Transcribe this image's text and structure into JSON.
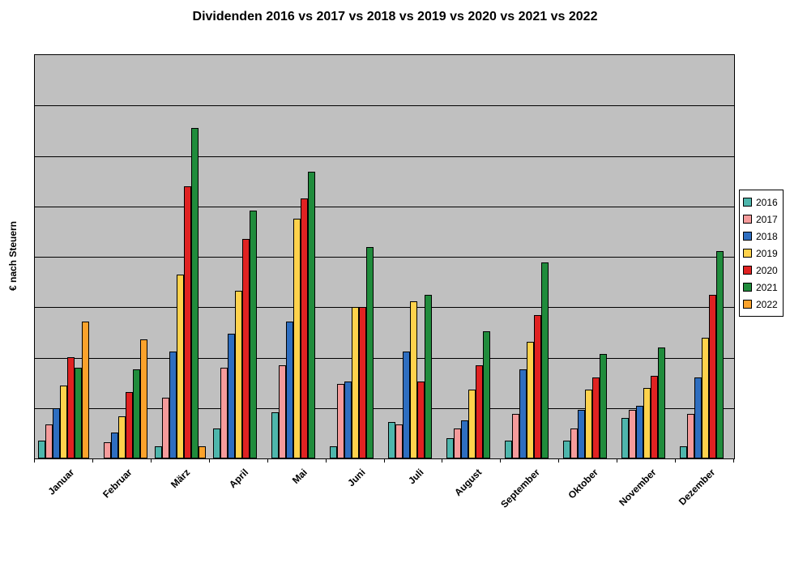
{
  "chart_data": {
    "type": "bar",
    "title": "Dividenden 2016 vs 2017 vs 2018 vs 2019 vs 2020 vs 2021 vs 2022",
    "xlabel": "",
    "ylabel": "€ nach Steuern",
    "categories": [
      "Januar",
      "Februar",
      "März",
      "April",
      "Mai",
      "Juni",
      "Juli",
      "August",
      "September",
      "Oktober",
      "November",
      "Dezember"
    ],
    "series": [
      {
        "name": "2016",
        "color": "#4EB6AC",
        "values": [
          4.5,
          0,
          3,
          7.5,
          11.5,
          3,
          9,
          5,
          4.5,
          4.5,
          10,
          3
        ]
      },
      {
        "name": "2017",
        "color": "#F59B9B",
        "values": [
          8.5,
          4,
          15,
          22.5,
          23,
          18.5,
          8.5,
          7.5,
          11,
          7.5,
          12,
          11
        ]
      },
      {
        "name": "2018",
        "color": "#2E6EC0",
        "values": [
          12.5,
          6.5,
          26.5,
          31,
          34,
          19,
          26.5,
          9.5,
          22,
          12,
          13,
          20
        ]
      },
      {
        "name": "2019",
        "color": "#FFD24C",
        "values": [
          18,
          10.5,
          45.5,
          41.5,
          59.5,
          37.5,
          39,
          17,
          29,
          17,
          17.5,
          30
        ]
      },
      {
        "name": "2020",
        "color": "#E02222",
        "values": [
          25,
          16.5,
          67.5,
          54.5,
          64.5,
          37.5,
          19,
          23,
          35.5,
          20,
          20.5,
          40.5
        ]
      },
      {
        "name": "2021",
        "color": "#208C3C",
        "values": [
          22.5,
          22,
          82,
          61.5,
          71,
          52.5,
          40.5,
          31.5,
          48.5,
          26,
          27.5,
          51.5
        ]
      },
      {
        "name": "2022",
        "color": "#FBA22B",
        "values": [
          34,
          29.5,
          3,
          0,
          0,
          0,
          0,
          0,
          0,
          0,
          0,
          0
        ]
      }
    ],
    "ylim": [
      0,
      100
    ],
    "y_gridline_intervals": 8,
    "grid": true,
    "y_tick_labels_visible": false,
    "legend_position": "right",
    "plot_background": "#C0C0C0",
    "gridline_color": "#000000",
    "border_color": "#000000"
  }
}
